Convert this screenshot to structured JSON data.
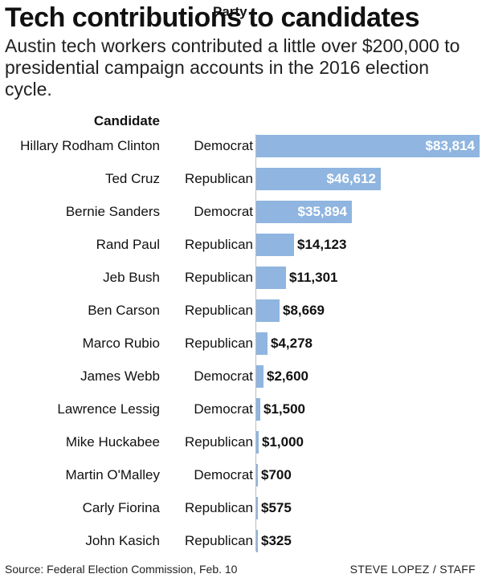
{
  "title": "Tech contributions to candidates",
  "subtitle": "Austin tech workers contributed a little over $200,000 to presidential campaign accounts in the 2016 election cycle.",
  "source": "Source: Federal Election Commission, Feb. 10",
  "credit": "STEVE LOPEZ / STAFF",
  "colors": {
    "bar": "#8fb5e0",
    "text": "#111111",
    "value_inside": "#ffffff"
  },
  "chart_data": {
    "type": "bar",
    "orientation": "horizontal",
    "title": "Tech contributions to candidates",
    "subtitle": "Austin tech workers contributed a little over $200,000 to presidential campaign accounts in the 2016 election cycle.",
    "column_headers": {
      "candidate": "Candidate",
      "party": "Party"
    },
    "xlim": [
      0,
      83814
    ],
    "categories": [
      "Hillary Rodham Clinton",
      "Ted Cruz",
      "Bernie Sanders",
      "Rand Paul",
      "Jeb Bush",
      "Ben Carson",
      "Marco Rubio",
      "James Webb",
      "Lawrence Lessig",
      "Mike Huckabee",
      "Martin O'Malley",
      "Carly Fiorina",
      "John Kasich"
    ],
    "parties": [
      "Democrat",
      "Republican",
      "Democrat",
      "Republican",
      "Republican",
      "Republican",
      "Republican",
      "Democrat",
      "Democrat",
      "Republican",
      "Democrat",
      "Republican",
      "Republican"
    ],
    "values": [
      83814,
      46612,
      35894,
      14123,
      11301,
      8669,
      4278,
      2600,
      1500,
      1000,
      700,
      575,
      325
    ],
    "value_labels": [
      "$83,814",
      "$46,612",
      "$35,894",
      "$14,123",
      "$11,301",
      "$8,669",
      "$4,278",
      "$2,600",
      "$1,500",
      "$1,000",
      "$700",
      "$575",
      "$325"
    ]
  }
}
